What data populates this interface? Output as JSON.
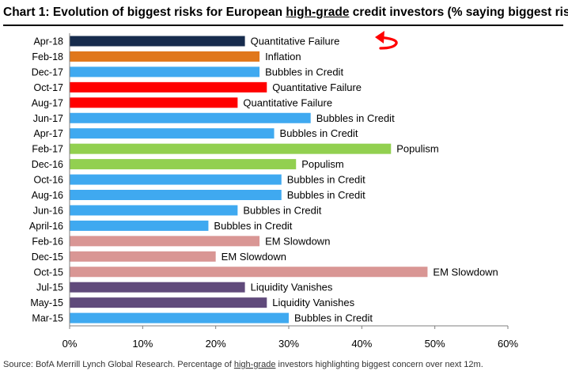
{
  "title": {
    "prefix": "Chart 1: Evolution of biggest risks for European ",
    "underlined": "high-grade",
    "suffix": " credit investors (% saying biggest risk)"
  },
  "source": {
    "prefix": "Source: BofA Merrill Lynch Global Research. Percentage of ",
    "underlined": "high-grade",
    "suffix": " investors highlighting biggest concern over next 12m."
  },
  "colors": {
    "navy": "#172c4d",
    "orange": "#e0771c",
    "red": "#ff0000",
    "light_blue": "#3fa9f0",
    "green": "#92d050",
    "pink": "#d99694",
    "purple": "#604a7b",
    "axis": "#7f7f7f",
    "arrow": "#ff0000"
  },
  "chart_data": {
    "type": "bar",
    "orientation": "horizontal",
    "title": "Evolution of biggest risks for European high-grade credit investors (% saying biggest risk)",
    "xlabel": "",
    "ylabel": "",
    "xlim": [
      0,
      60
    ],
    "x_ticks": [
      "0%",
      "10%",
      "20%",
      "30%",
      "40%",
      "50%",
      "60%"
    ],
    "grid": false,
    "categories": [
      "Apr-18",
      "Feb-18",
      "Dec-17",
      "Oct-17",
      "Aug-17",
      "Jun-17",
      "Apr-17",
      "Feb-17",
      "Dec-16",
      "Oct-16",
      "Aug-16",
      "Jun-16",
      "April-16",
      "Feb-16",
      "Dec-15",
      "Oct-15",
      "Jul-15",
      "May-15",
      "Mar-15"
    ],
    "values": [
      24,
      26,
      26,
      27,
      23,
      33,
      28,
      44,
      31,
      29,
      29,
      23,
      19,
      26,
      20,
      49,
      24,
      27,
      30
    ],
    "labels": [
      "Quantitative  Failure",
      "Inflation",
      "Bubbles in Credit",
      "Quantitative  Failure",
      "Quantitative  Failure",
      "Bubbles in Credit",
      "Bubbles in Credit",
      "Populism",
      "Populism",
      "Bubbles in Credit",
      "Bubbles in Credit",
      "Bubbles in Credit",
      "Bubbles in Credit",
      "EM Slowdown",
      "EM Slowdown",
      "EM Slowdown",
      "Liquidity  Vanishes",
      "Liquidity  Vanishes",
      "Bubbles in Credit"
    ],
    "bar_colors": [
      "navy",
      "orange",
      "light_blue",
      "red",
      "red",
      "light_blue",
      "light_blue",
      "green",
      "green",
      "light_blue",
      "light_blue",
      "light_blue",
      "light_blue",
      "pink",
      "pink",
      "pink",
      "purple",
      "purple",
      "light_blue"
    ],
    "annotation": "curved-arrow pointing at Apr-18 label"
  }
}
